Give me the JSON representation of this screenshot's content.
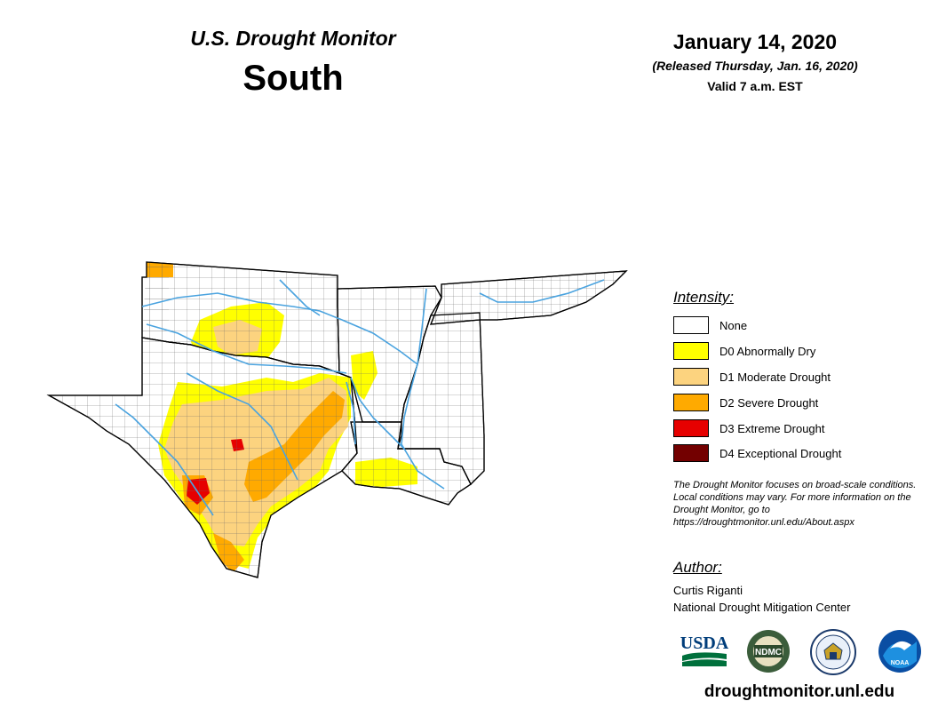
{
  "header": {
    "title": "U.S. Drought Monitor",
    "region": "South",
    "date": "January 14, 2020",
    "released": "(Released Thursday, Jan. 16, 2020)",
    "valid": "Valid 7 a.m. EST"
  },
  "legend": {
    "heading": "Intensity:",
    "items": [
      {
        "label": "None",
        "color": "#ffffff"
      },
      {
        "label": "D0 Abnormally Dry",
        "color": "#ffff00"
      },
      {
        "label": "D1 Moderate Drought",
        "color": "#fcd37f"
      },
      {
        "label": "D2 Severe Drought",
        "color": "#ffaa00"
      },
      {
        "label": "D3 Extreme Drought",
        "color": "#e60000"
      },
      {
        "label": "D4 Exceptional Drought",
        "color": "#730000"
      }
    ]
  },
  "note": "The Drought Monitor focuses on broad-scale conditions. Local conditions may vary. For more information on the Drought Monitor, go to https://droughtmonitor.unl.edu/About.aspx",
  "author": {
    "heading": "Author:",
    "name": "Curtis Riganti",
    "org": "National Drought Mitigation Center"
  },
  "logos": {
    "usda": "USDA",
    "ndmc": "NDMC",
    "commerce": "commerce-seal",
    "noaa": "NOAA"
  },
  "website": "droughtmonitor.unl.edu",
  "map_colors": {
    "river": "#4aa3df",
    "border": "#000000",
    "county": "#555555"
  }
}
